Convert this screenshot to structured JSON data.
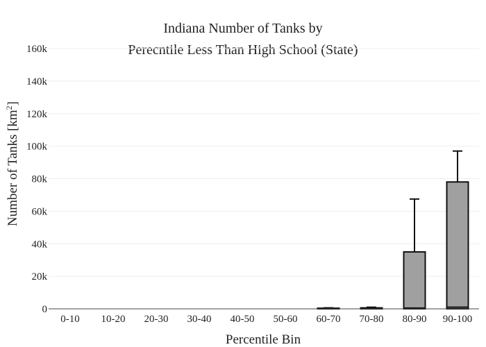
{
  "chart_data": {
    "type": "bar",
    "title_lines": [
      "Indiana Number of Tanks by",
      "Perecntile Less Than High School (State)"
    ],
    "xlabel": "Percentile Bin",
    "ylabel_main": "Number of Tanks  [km",
    "ylabel_sup": "2",
    "ylabel_close": "]",
    "categories": [
      "0-10",
      "10-20",
      "20-30",
      "30-40",
      "40-50",
      "50-60",
      "60-70",
      "70-80",
      "80-90",
      "90-100"
    ],
    "values": [
      0,
      0,
      0,
      0,
      0,
      0,
      400,
      600,
      35000,
      78000
    ],
    "error_upper": [
      0,
      0,
      0,
      0,
      0,
      0,
      600,
      1000,
      67500,
      97000
    ],
    "inner_values": [
      0,
      0,
      0,
      0,
      0,
      0,
      0,
      100,
      500,
      1000
    ],
    "ylim": [
      0,
      160000
    ],
    "yticks": [
      0,
      20000,
      40000,
      60000,
      80000,
      100000,
      120000,
      140000,
      160000
    ],
    "ytick_labels": [
      "0",
      "20k",
      "40k",
      "60k",
      "80k",
      "100k",
      "120k",
      "140k",
      "160k"
    ],
    "grid": true,
    "legend": "none",
    "colors": {
      "bar_fill": "#a0a0a0",
      "bar_stroke": "#111111",
      "grid": "#eeeeee",
      "axis": "#444444"
    }
  }
}
